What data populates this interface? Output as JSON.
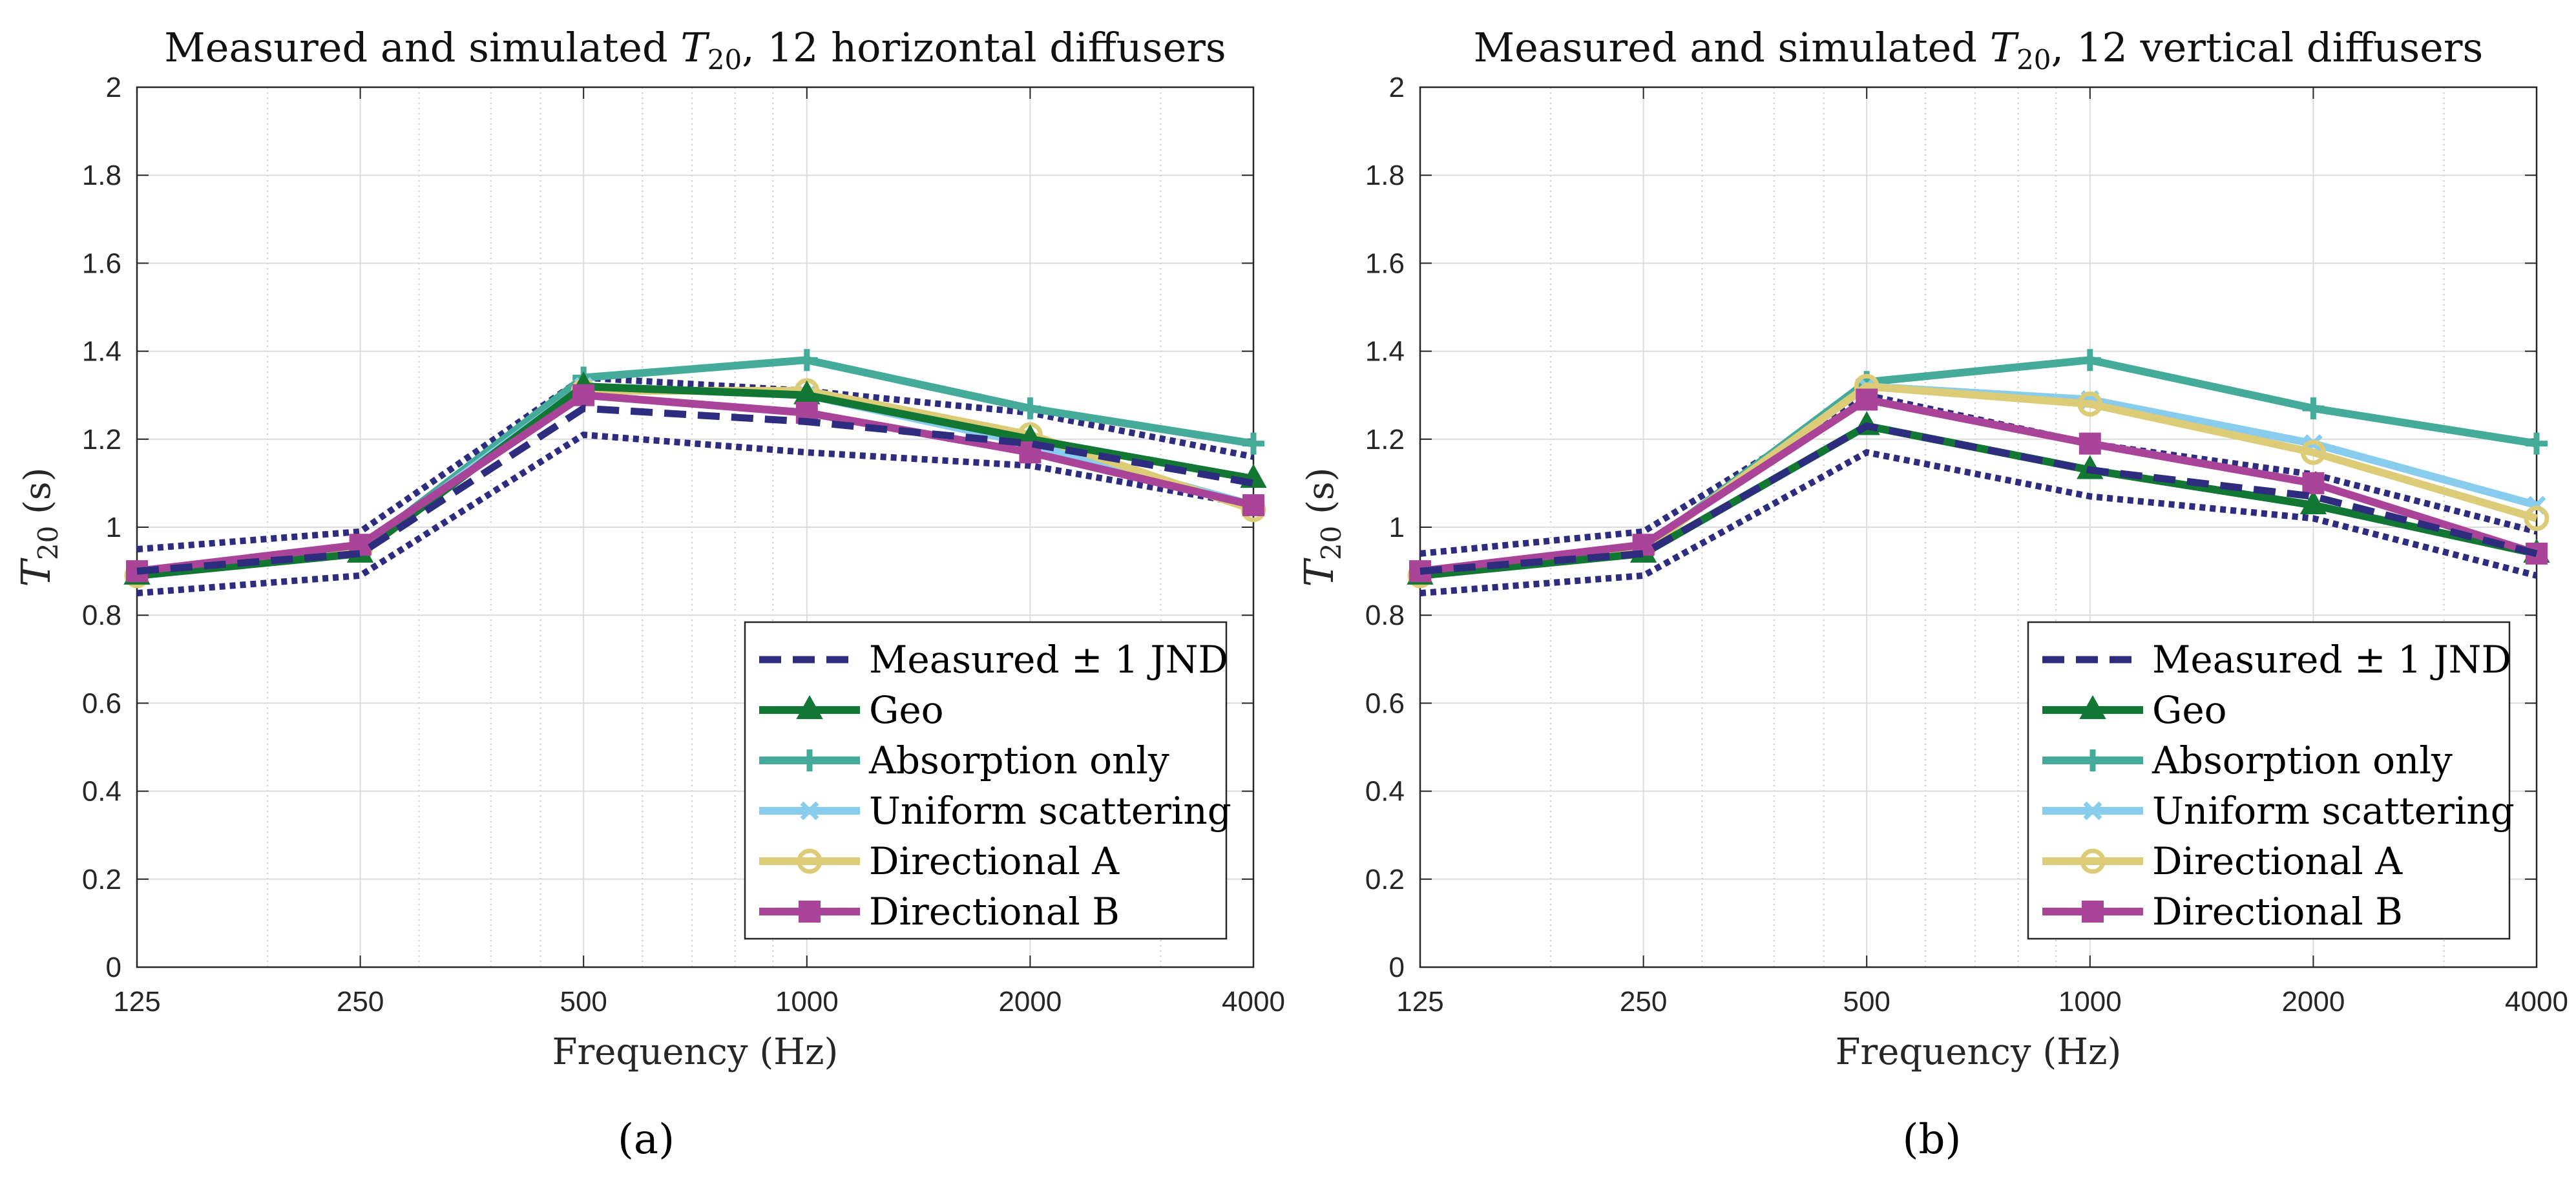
{
  "figure_captions": [
    "(a)",
    "(b)"
  ],
  "colors": {
    "measured": "#2e2c7e",
    "geo": "#117733",
    "absorption": "#44aa99",
    "uniform": "#88ccee",
    "dirA": "#ddcc77",
    "dirB": "#aa4499",
    "grid": "#dcdcdc",
    "minorGrid": "#c8c8c8"
  },
  "legend": {
    "items": [
      {
        "key": "measured",
        "label": "Measured ± 1 JND",
        "marker": "dash"
      },
      {
        "key": "geo",
        "label": "Geo",
        "marker": "triangle"
      },
      {
        "key": "absorption",
        "label": "Absorption only",
        "marker": "plus"
      },
      {
        "key": "uniform",
        "label": "Uniform scattering",
        "marker": "x"
      },
      {
        "key": "dirA",
        "label": "Directional A",
        "marker": "circle"
      },
      {
        "key": "dirB",
        "label": "Directional B",
        "marker": "square"
      }
    ]
  },
  "chart_data": [
    {
      "type": "line",
      "title_prefix": "Measured and simulated",
      "title_symbol": "T",
      "title_sub": "20",
      "title_suffix": ", 12 horizontal diffusers",
      "xlabel": "Frequency (Hz)",
      "ylabel_symbol": "T",
      "ylabel_sub": "20",
      "ylabel_unit": "(s)",
      "x_scale": "log2",
      "x": [
        125,
        250,
        500,
        1000,
        2000,
        4000
      ],
      "x_tick_labels": [
        "125",
        "250",
        "500",
        "1000",
        "2000",
        "4000"
      ],
      "ylim": [
        0,
        2
      ],
      "y_ticks": [
        0,
        0.2,
        0.4,
        0.6,
        0.8,
        1,
        1.2,
        1.4,
        1.6,
        1.8,
        2
      ],
      "y_tick_labels": [
        "0",
        "0.2",
        "0.4",
        "0.6",
        "0.8",
        "1",
        "1.2",
        "1.4",
        "1.6",
        "1.8",
        "2"
      ],
      "grid": true,
      "legend_position": "bottom-right",
      "measured": [
        0.9,
        0.94,
        1.27,
        1.24,
        1.19,
        1.1
      ],
      "jnd_upper": [
        0.95,
        0.99,
        1.34,
        1.31,
        1.26,
        1.16
      ],
      "jnd_lower": [
        0.85,
        0.89,
        1.21,
        1.17,
        1.14,
        1.05
      ],
      "series": [
        {
          "key": "geo",
          "name": "Geo",
          "values": [
            0.89,
            0.94,
            1.32,
            1.3,
            1.2,
            1.11
          ]
        },
        {
          "key": "absorption",
          "name": "Absorption only",
          "values": [
            0.89,
            0.95,
            1.34,
            1.38,
            1.27,
            1.19
          ]
        },
        {
          "key": "uniform",
          "name": "Uniform scattering",
          "values": [
            0.89,
            0.95,
            1.32,
            1.3,
            1.19,
            1.05
          ]
        },
        {
          "key": "dirA",
          "name": "Directional A",
          "values": [
            0.89,
            0.95,
            1.31,
            1.31,
            1.21,
            1.04
          ]
        },
        {
          "key": "dirB",
          "name": "Directional B",
          "values": [
            0.9,
            0.96,
            1.3,
            1.26,
            1.17,
            1.05
          ]
        }
      ]
    },
    {
      "type": "line",
      "title_prefix": "Measured and simulated",
      "title_symbol": "T",
      "title_sub": "20",
      "title_suffix": ", 12 vertical diffusers",
      "xlabel": "Frequency (Hz)",
      "ylabel_symbol": "T",
      "ylabel_sub": "20",
      "ylabel_unit": "(s)",
      "x_scale": "log2",
      "x": [
        125,
        250,
        500,
        1000,
        2000,
        4000
      ],
      "x_tick_labels": [
        "125",
        "250",
        "500",
        "1000",
        "2000",
        "4000"
      ],
      "ylim": [
        0,
        2
      ],
      "y_ticks": [
        0,
        0.2,
        0.4,
        0.6,
        0.8,
        1,
        1.2,
        1.4,
        1.6,
        1.8,
        2
      ],
      "y_tick_labels": [
        "0",
        "0.2",
        "0.4",
        "0.6",
        "0.8",
        "1",
        "1.2",
        "1.4",
        "1.6",
        "1.8",
        "2"
      ],
      "grid": true,
      "legend_position": "bottom-right",
      "measured": [
        0.9,
        0.94,
        1.23,
        1.13,
        1.07,
        0.94
      ],
      "jnd_upper": [
        0.94,
        0.99,
        1.3,
        1.19,
        1.12,
        0.99
      ],
      "jnd_lower": [
        0.85,
        0.89,
        1.17,
        1.07,
        1.02,
        0.89
      ],
      "series": [
        {
          "key": "geo",
          "name": "Geo",
          "values": [
            0.89,
            0.94,
            1.23,
            1.13,
            1.05,
            0.94
          ]
        },
        {
          "key": "absorption",
          "name": "Absorption only",
          "values": [
            0.89,
            0.95,
            1.33,
            1.38,
            1.27,
            1.19
          ]
        },
        {
          "key": "uniform",
          "name": "Uniform scattering",
          "values": [
            0.89,
            0.95,
            1.32,
            1.29,
            1.19,
            1.05
          ]
        },
        {
          "key": "dirA",
          "name": "Directional A",
          "values": [
            0.89,
            0.95,
            1.32,
            1.28,
            1.17,
            1.02
          ]
        },
        {
          "key": "dirB",
          "name": "Directional B",
          "values": [
            0.9,
            0.96,
            1.29,
            1.19,
            1.1,
            0.94
          ]
        }
      ]
    }
  ]
}
